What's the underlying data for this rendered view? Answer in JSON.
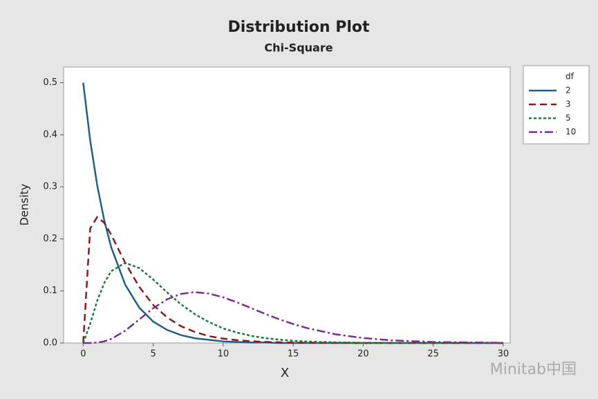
{
  "chart_data": {
    "type": "line",
    "title": "Distribution Plot",
    "subtitle": "Chi-Square",
    "x_label": "X",
    "y_label": "Density",
    "legend_title": "df",
    "legend_position": "outside-right",
    "watermark": "Minitab中国",
    "x": [
      0,
      0.5,
      1,
      1.5,
      2,
      3,
      4,
      5,
      6,
      7,
      8,
      9,
      10,
      11,
      12,
      13,
      14,
      15,
      16,
      18,
      20,
      22,
      25,
      30
    ],
    "series": [
      {
        "name": "2",
        "color": "#1f5f8b",
        "dash": "none",
        "values": [
          0.5,
          0.389,
          0.303,
          0.236,
          0.184,
          0.112,
          0.068,
          0.041,
          0.025,
          0.015,
          0.009,
          0.006,
          0.003,
          0.002,
          0.001,
          0.001,
          0,
          0,
          0,
          0,
          0,
          0,
          0,
          0
        ]
      },
      {
        "name": "3",
        "color": "#8b1a1a",
        "dash": "10 6",
        "values": [
          0,
          0.22,
          0.242,
          0.231,
          0.208,
          0.154,
          0.108,
          0.073,
          0.049,
          0.032,
          0.021,
          0.013,
          0.0085,
          0.0054,
          0.0034,
          0.0021,
          0.0013,
          0.0008,
          0.0005,
          0.0002,
          0,
          0,
          0,
          0
        ]
      },
      {
        "name": "5",
        "color": "#1e7a3a",
        "dash": "4 3",
        "values": [
          0,
          0.037,
          0.081,
          0.115,
          0.138,
          0.154,
          0.144,
          0.122,
          0.097,
          0.074,
          0.055,
          0.04,
          0.028,
          0.02,
          0.0137,
          0.0094,
          0.0064,
          0.0043,
          0.0029,
          0.0013,
          0.0005,
          0.0002,
          0.0001,
          0
        ]
      },
      {
        "name": "10",
        "color": "#7b2d8e",
        "dash": "12 4 3 4",
        "values": [
          0,
          6e-05,
          0.0008,
          0.0031,
          0.0077,
          0.0235,
          0.0451,
          0.0668,
          0.084,
          0.0944,
          0.0977,
          0.0948,
          0.0877,
          0.078,
          0.067,
          0.0558,
          0.0456,
          0.0365,
          0.0286,
          0.0168,
          0.0095,
          0.0051,
          0.0019,
          0.0003
        ]
      }
    ],
    "xlim": [
      -1.4,
      30.5
    ],
    "xticks": [
      0,
      5,
      10,
      15,
      20,
      25,
      30
    ],
    "ylim": [
      0,
      0.53
    ],
    "yticks": [
      {
        "value": 0,
        "label": "0.0"
      },
      0.1,
      0.2,
      0.3,
      0.4,
      0.5
    ],
    "grid": false
  }
}
